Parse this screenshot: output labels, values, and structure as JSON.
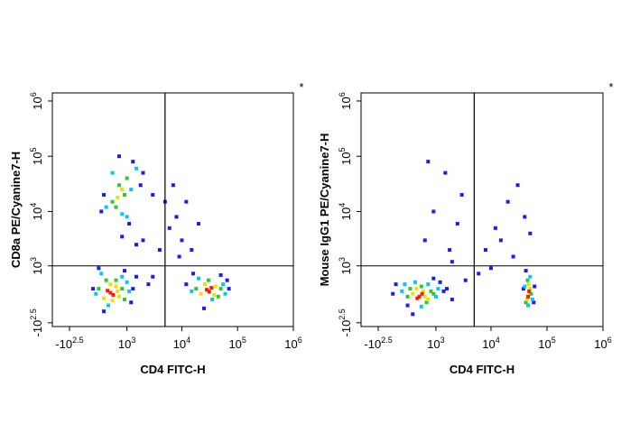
{
  "chart_data": [
    {
      "type": "scatter",
      "scale": "biexponential",
      "y_title": "CD8a PE/Cyanine7-H",
      "x_title": "CD4 FITC-H",
      "corner_mark": "*",
      "xlim": [
        -790,
        1000000
      ],
      "ylim": [
        -400,
        1400000
      ],
      "xticks": [
        {
          "value": -316,
          "label": "-10^2.5"
        },
        {
          "value": 1000,
          "label": "10^3"
        },
        {
          "value": 10000,
          "label": "10^4"
        },
        {
          "value": 100000,
          "label": "10^5"
        },
        {
          "value": 1000000,
          "label": "10^6"
        }
      ],
      "yticks": [
        {
          "value": -316,
          "label": "-10^2.5"
        },
        {
          "value": 1000,
          "label": "10^3"
        },
        {
          "value": 10000,
          "label": "10^4"
        },
        {
          "value": 100000,
          "label": "10^5"
        },
        {
          "value": 1000000,
          "label": "10^6"
        }
      ],
      "gate": {
        "x": 5000,
        "y": 1000
      },
      "series": [
        {
          "color": "#1a1aff",
          "x": [
            100,
            1300,
            1500,
            200,
            900,
            300,
            1200,
            12000,
            70000,
            16000,
            65000,
            25000,
            50000,
            250,
            1800,
            300,
            1300,
            2000,
            700,
            1100,
            3000,
            2000,
            6000,
            8000,
            10000,
            15000,
            20000,
            7000,
            12000,
            3000,
            9000,
            2500,
            4000,
            1500,
            800,
            5000
          ],
          "y": [
            300,
            300,
            600,
            900,
            800,
            -100,
            50,
            400,
            300,
            700,
            500,
            -50,
            650,
            10000,
            30000,
            20000,
            80000,
            50000,
            100000,
            6000,
            20000,
            3000,
            5000,
            8000,
            3000,
            2000,
            6000,
            30000,
            15000,
            600,
            1500,
            400,
            2000,
            2500,
            3500,
            15000
          ]
        },
        {
          "color": "#00c8ff",
          "x": [
            150,
            1000,
            1100,
            250,
            800,
            400,
            15000,
            55000,
            20000,
            60000,
            35000,
            350,
            1200,
            800,
            500,
            1500,
            1000
          ],
          "y": [
            200,
            450,
            250,
            700,
            600,
            0,
            250,
            400,
            550,
            200,
            100,
            12000,
            25000,
            9000,
            50000,
            60000,
            8000
          ]
        },
        {
          "color": "#2ec82e",
          "x": [
            200,
            800,
            900,
            350,
            600,
            18000,
            50000,
            30000,
            45000,
            500,
            700,
            900,
            600,
            1000
          ],
          "y": [
            300,
            300,
            100,
            500,
            500,
            300,
            300,
            500,
            150,
            15000,
            30000,
            20000,
            12000,
            40000
          ]
        },
        {
          "color": "#f0e000",
          "x": [
            300,
            600,
            700,
            450,
            650,
            500,
            22000,
            40000,
            26000,
            38000,
            650,
            800
          ],
          "y": [
            120,
            350,
            150,
            400,
            250,
            80,
            200,
            350,
            400,
            180,
            18000,
            25000
          ]
        },
        {
          "color": "#ff1a00",
          "x": [
            450,
            520,
            380,
            28000,
            34000,
            31000
          ],
          "y": [
            220,
            180,
            260,
            280,
            320,
            240
          ]
        }
      ]
    },
    {
      "type": "scatter",
      "scale": "biexponential",
      "y_title": "Mouse IgG1 PE/Cyanine7-H",
      "x_title": "CD4 FITC-H",
      "corner_mark": "*",
      "xlim": [
        -790,
        1000000
      ],
      "ylim": [
        -400,
        1400000
      ],
      "xticks": [
        {
          "value": -316,
          "label": "-10^2.5"
        },
        {
          "value": 1000,
          "label": "10^3"
        },
        {
          "value": 10000,
          "label": "10^4"
        },
        {
          "value": 100000,
          "label": "10^5"
        },
        {
          "value": 1000000,
          "label": "10^6"
        }
      ],
      "yticks": [
        {
          "value": -316,
          "label": "-10^2.5"
        },
        {
          "value": 1000,
          "label": "10^3"
        },
        {
          "value": 10000,
          "label": "10^4"
        },
        {
          "value": 100000,
          "label": "10^5"
        },
        {
          "value": 1000000,
          "label": "10^6"
        }
      ],
      "gate": {
        "x": 5000,
        "y": 1000
      },
      "series": [
        {
          "color": "#1a1aff",
          "x": [
            -50,
            1400,
            0,
            1600,
            200,
            1200,
            300,
            900,
            2000,
            38000,
            60000,
            42000,
            58000,
            600,
            900,
            1500,
            3000,
            700,
            2500,
            8000,
            12000,
            20000,
            30000,
            15000,
            40000,
            10000,
            25000,
            50000,
            3500,
            2000,
            6000,
            1800
          ],
          "y": [
            200,
            250,
            400,
            300,
            0,
            450,
            -150,
            550,
            100,
            300,
            350,
            800,
            50,
            3000,
            10000,
            50000,
            20000,
            80000,
            6000,
            2000,
            5000,
            15000,
            30000,
            3000,
            8000,
            900,
            1500,
            4000,
            500,
            1200,
            700,
            2000
          ]
        },
        {
          "color": "#00c8ff",
          "x": [
            100,
            1000,
            150,
            1100,
            350,
            700,
            500,
            40000,
            55000,
            46000,
            50000
          ],
          "y": [
            250,
            150,
            400,
            300,
            450,
            400,
            -20,
            350,
            100,
            0,
            600
          ]
        },
        {
          "color": "#2ec82e",
          "x": [
            200,
            800,
            250,
            900,
            500,
            650,
            42000,
            52000,
            45000
          ],
          "y": [
            150,
            250,
            300,
            200,
            350,
            50,
            50,
            200,
            500
          ]
        },
        {
          "color": "#f0e000",
          "x": [
            300,
            600,
            380,
            700,
            550,
            44000,
            50000,
            47000
          ],
          "y": [
            200,
            150,
            300,
            100,
            250,
            100,
            300,
            400
          ]
        },
        {
          "color": "#ff1a00",
          "x": [
            450,
            520,
            400,
            46000,
            48000
          ],
          "y": [
            150,
            200,
            120,
            150,
            250
          ]
        }
      ]
    }
  ]
}
